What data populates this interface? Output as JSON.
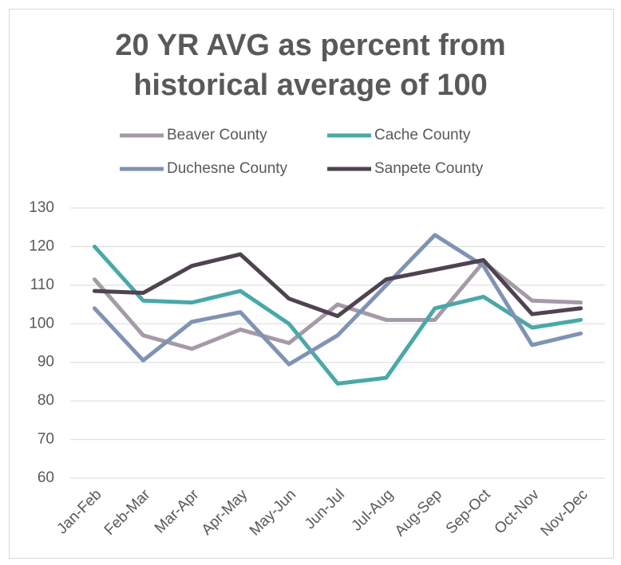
{
  "chart_data": {
    "type": "line",
    "title": "20 YR AVG as percent from historical average of 100",
    "categories": [
      "Jan-Feb",
      "Feb-Mar",
      "Mar-Apr",
      "Apr-May",
      "May-Jun",
      "Jun-Jul",
      "Jul-Aug",
      "Aug-Sep",
      "Sep-Oct",
      "Oct-Nov",
      "Nov-Dec"
    ],
    "series": [
      {
        "name": "Beaver County",
        "color": "#a59aa8",
        "values": [
          111.5,
          97,
          93.5,
          98.5,
          95,
          105,
          101,
          101,
          116,
          106,
          105.5
        ]
      },
      {
        "name": "Cache County",
        "color": "#4aa8a8",
        "values": [
          120,
          106,
          105.5,
          108.5,
          100,
          84.5,
          86,
          104,
          107,
          99,
          101
        ]
      },
      {
        "name": "Duchesne County",
        "color": "#7f93b3",
        "values": [
          104,
          90.5,
          100.5,
          103,
          89.5,
          97,
          110,
          123,
          115,
          94.5,
          97.5
        ]
      },
      {
        "name": "Sanpete County",
        "color": "#4f4350",
        "values": [
          108.5,
          108,
          115,
          118,
          106.5,
          102,
          111.5,
          114,
          116.5,
          102.5,
          104
        ]
      }
    ],
    "ylim": [
      60,
      130
    ],
    "yticks": [
      60,
      70,
      80,
      90,
      100,
      110,
      120,
      130
    ],
    "grid": true
  }
}
